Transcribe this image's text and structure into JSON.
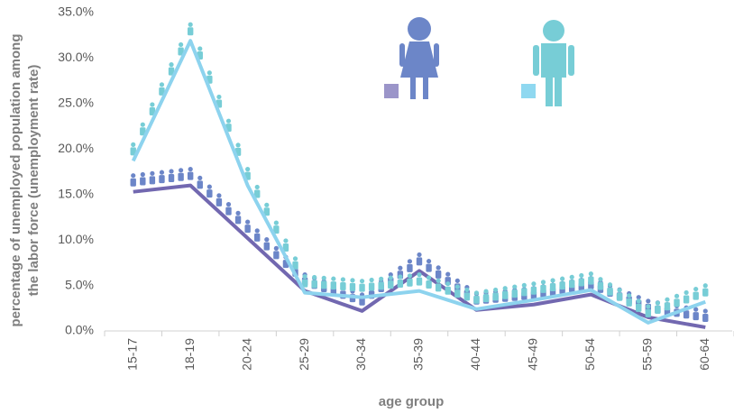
{
  "chart_data": {
    "type": "line",
    "y_label": [
      "percentage of unemployed population among",
      "the labor force (unemployment rate)"
    ],
    "x_label": "age group",
    "categories": [
      "15-17",
      "18-19",
      "20-24",
      "25-29",
      "30-34",
      "35-39",
      "40-44",
      "45-49",
      "50-54",
      "55-59",
      "60-64"
    ],
    "series": [
      {
        "color": "#7268b0",
        "values": [
          15.3,
          16.0,
          10.2,
          4.4,
          2.2,
          6.6,
          2.3,
          2.9,
          4.0,
          1.5,
          0.4
        ]
      },
      {
        "color": "#8dd3ee",
        "values": [
          18.7,
          31.9,
          16.0,
          4.2,
          3.7,
          4.4,
          2.4,
          3.4,
          4.5,
          0.9,
          3.2
        ]
      }
    ],
    "ylim": [
      0,
      35
    ],
    "yticks": [
      {
        "value": 0,
        "label": "0.0%"
      },
      {
        "value": 5,
        "label": "5.0%"
      },
      {
        "value": 10,
        "label": "10.0%"
      },
      {
        "value": 15,
        "label": "15.0%"
      },
      {
        "value": 20,
        "label": "20.0%"
      },
      {
        "value": 25,
        "label": "25.0%"
      },
      {
        "value": 30,
        "label": "30.0%"
      },
      {
        "value": 35,
        "label": "35.0%"
      }
    ],
    "grid": false
  }
}
